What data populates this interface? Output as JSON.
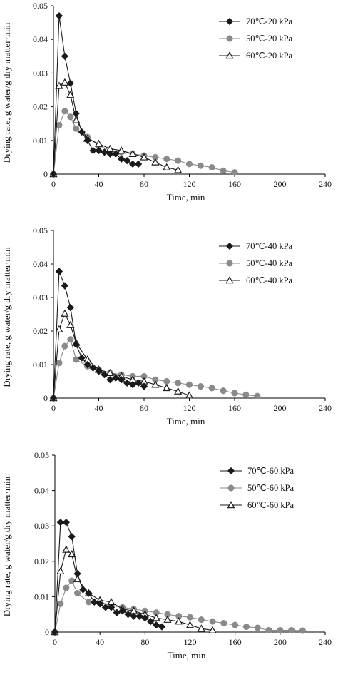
{
  "chart_data": [
    {
      "type": "line",
      "xlabel": "Time, min",
      "ylabel": "Drying rate, g water/g dry matter·min",
      "xlim": [
        0,
        240
      ],
      "ylim": [
        0,
        0.05
      ],
      "xticks": [
        "0",
        "40",
        "80",
        "120",
        "160",
        "200",
        "240"
      ],
      "yticks": [
        "0",
        "0.01",
        "0.02",
        "0.03",
        "0.04",
        "0.05"
      ],
      "legend_position": "top-right",
      "series": [
        {
          "name": "70℃-20 kPa",
          "marker": "diamond",
          "color": "#1a1a1a",
          "x": [
            0,
            5,
            10,
            15,
            20,
            25,
            30,
            35,
            40,
            45,
            50,
            55,
            60,
            65,
            70,
            75
          ],
          "y": [
            0,
            0.047,
            0.035,
            0.027,
            0.018,
            0.0125,
            0.01,
            0.007,
            0.007,
            0.0065,
            0.006,
            0.006,
            0.0045,
            0.004,
            0.003,
            0.003
          ]
        },
        {
          "name": "50℃-20 kPa",
          "marker": "circle",
          "color": "#8a8a8a",
          "x": [
            0,
            5,
            10,
            15,
            20,
            30,
            40,
            50,
            60,
            70,
            80,
            90,
            100,
            110,
            120,
            130,
            140,
            150,
            160
          ],
          "y": [
            0,
            0.0145,
            0.0187,
            0.017,
            0.0135,
            0.011,
            0.0085,
            0.007,
            0.0065,
            0.006,
            0.0055,
            0.005,
            0.0045,
            0.004,
            0.003,
            0.0025,
            0.002,
            0.001,
            0.0005
          ]
        },
        {
          "name": "60℃-20 kPa",
          "marker": "triangle",
          "color": "#1a1a1a",
          "x": [
            0,
            5,
            10,
            15,
            20,
            30,
            40,
            50,
            60,
            70,
            80,
            90,
            100,
            110
          ],
          "y": [
            0,
            0.0262,
            0.0272,
            0.0235,
            0.016,
            0.0105,
            0.009,
            0.0075,
            0.007,
            0.006,
            0.005,
            0.0035,
            0.002,
            0.0012
          ]
        }
      ]
    },
    {
      "type": "line",
      "xlabel": "Time, min",
      "ylabel": "Drying rate, g water/g dry matter·min",
      "xlim": [
        0,
        240
      ],
      "ylim": [
        0,
        0.05
      ],
      "xticks": [
        "0",
        "40",
        "80",
        "120",
        "160",
        "200",
        "240"
      ],
      "yticks": [
        "0",
        "0.01",
        "0.02",
        "0.03",
        "0.04",
        "0.05"
      ],
      "legend_position": "top-right",
      "series": [
        {
          "name": "70℃-40 kPa",
          "marker": "diamond",
          "color": "#1a1a1a",
          "x": [
            0,
            5,
            10,
            15,
            20,
            25,
            30,
            35,
            40,
            45,
            50,
            55,
            60,
            65,
            70,
            75,
            80
          ],
          "y": [
            0,
            0.0378,
            0.0335,
            0.027,
            0.016,
            0.012,
            0.01,
            0.009,
            0.008,
            0.007,
            0.0055,
            0.006,
            0.0055,
            0.0045,
            0.004,
            0.0045,
            0.0035
          ]
        },
        {
          "name": "50℃-40 kPa",
          "marker": "circle",
          "color": "#8a8a8a",
          "x": [
            0,
            5,
            10,
            15,
            20,
            30,
            40,
            50,
            60,
            70,
            80,
            90,
            100,
            110,
            120,
            130,
            140,
            150,
            160,
            170,
            180
          ],
          "y": [
            0,
            0.0105,
            0.0155,
            0.0175,
            0.0115,
            0.0095,
            0.0085,
            0.0075,
            0.007,
            0.0065,
            0.0065,
            0.0055,
            0.005,
            0.0045,
            0.004,
            0.0035,
            0.003,
            0.0022,
            0.0015,
            0.001,
            0.0006
          ]
        },
        {
          "name": "60℃-40 kPa",
          "marker": "triangle",
          "color": "#1a1a1a",
          "x": [
            0,
            5,
            10,
            15,
            20,
            30,
            40,
            50,
            60,
            70,
            80,
            90,
            100,
            110,
            120
          ],
          "y": [
            0,
            0.0205,
            0.0252,
            0.0218,
            0.0165,
            0.0115,
            0.0085,
            0.0075,
            0.0065,
            0.0055,
            0.005,
            0.004,
            0.003,
            0.002,
            0.0008
          ]
        }
      ]
    },
    {
      "type": "line",
      "xlabel": "Time, min",
      "ylabel": "Drying rate, g water/g dry matter·min",
      "xlim": [
        0,
        240
      ],
      "ylim": [
        0,
        0.05
      ],
      "xticks": [
        "0",
        "40",
        "80",
        "120",
        "160",
        "200",
        "240"
      ],
      "yticks": [
        "0",
        "0.01",
        "0.02",
        "0.03",
        "0.04",
        "0.05"
      ],
      "legend_position": "top-right",
      "series": [
        {
          "name": "70℃-60 kPa",
          "marker": "diamond",
          "color": "#1a1a1a",
          "x": [
            0,
            5,
            10,
            15,
            20,
            25,
            30,
            35,
            40,
            45,
            50,
            55,
            60,
            65,
            70,
            75,
            80,
            85,
            90,
            95
          ],
          "y": [
            0,
            0.031,
            0.031,
            0.027,
            0.0165,
            0.012,
            0.011,
            0.0085,
            0.008,
            0.007,
            0.007,
            0.0055,
            0.006,
            0.005,
            0.0045,
            0.0045,
            0.004,
            0.003,
            0.002,
            0.0015
          ]
        },
        {
          "name": "50℃-60 kPa",
          "marker": "circle",
          "color": "#8a8a8a",
          "x": [
            0,
            5,
            10,
            15,
            20,
            30,
            40,
            50,
            60,
            70,
            80,
            90,
            100,
            110,
            120,
            130,
            140,
            150,
            160,
            170,
            180,
            190,
            200,
            210,
            220
          ],
          "y": [
            0,
            0.008,
            0.0125,
            0.0145,
            0.011,
            0.0085,
            0.0085,
            0.0075,
            0.007,
            0.0065,
            0.006,
            0.0055,
            0.005,
            0.0045,
            0.0042,
            0.0035,
            0.003,
            0.0025,
            0.002,
            0.0015,
            0.0012,
            0.0005,
            0.0005,
            0.0005,
            0.0004
          ]
        },
        {
          "name": "60℃-60 kPa",
          "marker": "triangle",
          "color": "#1a1a1a",
          "x": [
            0,
            5,
            10,
            15,
            20,
            30,
            40,
            50,
            60,
            70,
            80,
            90,
            100,
            110,
            120,
            130,
            140
          ],
          "y": [
            0,
            0.0172,
            0.0233,
            0.022,
            0.015,
            0.011,
            0.009,
            0.0085,
            0.0065,
            0.006,
            0.005,
            0.004,
            0.0035,
            0.003,
            0.002,
            0.001,
            0.0005
          ]
        }
      ]
    }
  ]
}
